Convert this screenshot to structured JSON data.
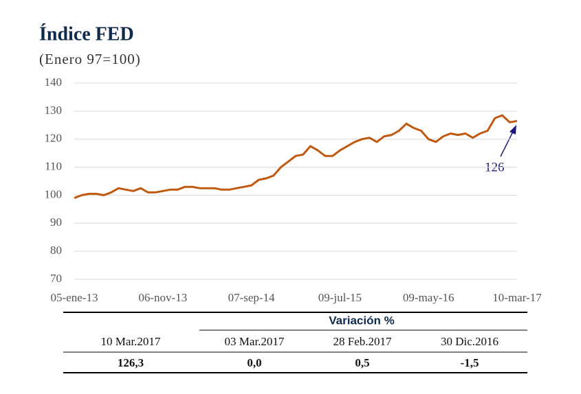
{
  "chart_data": {
    "type": "line",
    "title": "Índice FED",
    "subtitle": "(Enero 97=100)",
    "categories": [
      "05-ene-13",
      null,
      null,
      null,
      null,
      null,
      null,
      null,
      null,
      null,
      null,
      null,
      "06-nov-13",
      null,
      null,
      null,
      null,
      null,
      null,
      null,
      null,
      null,
      null,
      null,
      "07-sep-14",
      null,
      null,
      null,
      null,
      null,
      null,
      null,
      null,
      null,
      null,
      null,
      "09-jul-15",
      null,
      null,
      null,
      null,
      null,
      null,
      null,
      null,
      null,
      null,
      null,
      "09-may-16",
      null,
      null,
      null,
      null,
      null,
      null,
      null,
      null,
      null,
      null,
      null,
      "10-mar-17"
    ],
    "series": [
      {
        "name": "Índice FED",
        "color": "#c0580f",
        "values": [
          99,
          100,
          100.5,
          100.5,
          100,
          101,
          102.5,
          102,
          101.5,
          102.5,
          101,
          101,
          101.5,
          102,
          102,
          103,
          103,
          102.5,
          102.5,
          102.5,
          102,
          102,
          102.5,
          103,
          103.5,
          105.5,
          106,
          107,
          110,
          112,
          114,
          114.5,
          117.5,
          116,
          114,
          114,
          116,
          117.5,
          119,
          120,
          120.5,
          119,
          121,
          121.5,
          123,
          125.5,
          124,
          123,
          120,
          119,
          121,
          122,
          121.5,
          122,
          120.5,
          122,
          123,
          127.5,
          128.5,
          126,
          126.5
        ]
      }
    ],
    "ylim": [
      70,
      140
    ],
    "yticks": [
      70,
      80,
      90,
      100,
      110,
      120,
      130,
      140
    ],
    "grid": true,
    "annotation": "126"
  },
  "table": {
    "group_header": "Variación %",
    "header": [
      "10 Mar.2017",
      "03 Mar.2017",
      "28 Feb.2017",
      "30 Dic.2016"
    ],
    "rows": [
      [
        "126,3",
        "0,0",
        "0,5",
        "-1,5"
      ]
    ]
  }
}
